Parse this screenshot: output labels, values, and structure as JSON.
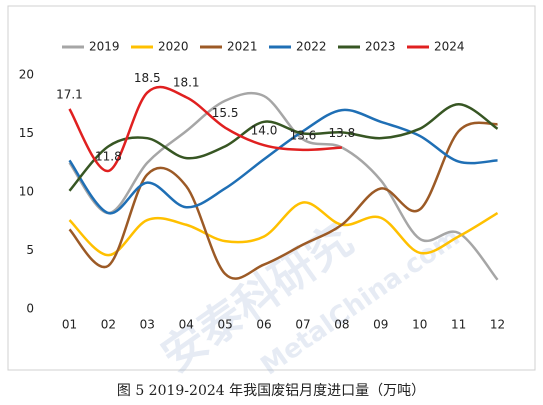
{
  "watermark": "安泰科研究",
  "watermark_url": "MetalChina.com",
  "chart_data": {
    "type": "line",
    "title": "图 5 2019-2024 年我国废铝月度进口量（万吨）",
    "categories": [
      "01",
      "02",
      "03",
      "04",
      "05",
      "06",
      "07",
      "08",
      "09",
      "10",
      "11",
      "12"
    ],
    "ylim": [
      0,
      20
    ],
    "yticks": [
      0,
      5,
      10,
      15,
      20
    ],
    "grid": false,
    "legend": "top",
    "smooth": true,
    "series": [
      {
        "name": "2019",
        "color": "#a6a6a6",
        "values": [
          12.5,
          8.2,
          12.5,
          15.2,
          17.8,
          18.2,
          14.5,
          13.8,
          11.0,
          6.0,
          6.5,
          2.5
        ]
      },
      {
        "name": "2020",
        "color": "#ffc000",
        "values": [
          7.6,
          4.6,
          7.6,
          7.2,
          5.8,
          6.2,
          9.1,
          7.2,
          7.8,
          4.8,
          6.2,
          8.2
        ]
      },
      {
        "name": "2021",
        "color": "#9c5a26",
        "values": [
          6.8,
          3.7,
          11.5,
          10.5,
          3.0,
          3.8,
          5.5,
          7.2,
          10.3,
          8.5,
          15.2,
          15.8
        ]
      },
      {
        "name": "2022",
        "color": "#1f6fb5",
        "values": [
          12.7,
          8.2,
          10.8,
          8.7,
          10.3,
          12.8,
          15.2,
          17.0,
          16.0,
          14.8,
          12.6,
          12.7
        ]
      },
      {
        "name": "2023",
        "color": "#375623",
        "values": [
          10.1,
          13.9,
          14.6,
          12.9,
          13.9,
          16.0,
          15.0,
          15.1,
          14.6,
          15.4,
          17.5,
          15.4
        ]
      },
      {
        "name": "2024",
        "color": "#e02020",
        "values": [
          17.1,
          11.8,
          18.5,
          18.1,
          15.5,
          14.0,
          13.6,
          13.8,
          null,
          null,
          null,
          null
        ],
        "value_labels": [
          "17.1",
          "11.8",
          "18.5",
          "18.1",
          "15.5",
          "14.0",
          "13.6",
          "13.8",
          null,
          null,
          null,
          null
        ]
      }
    ]
  }
}
